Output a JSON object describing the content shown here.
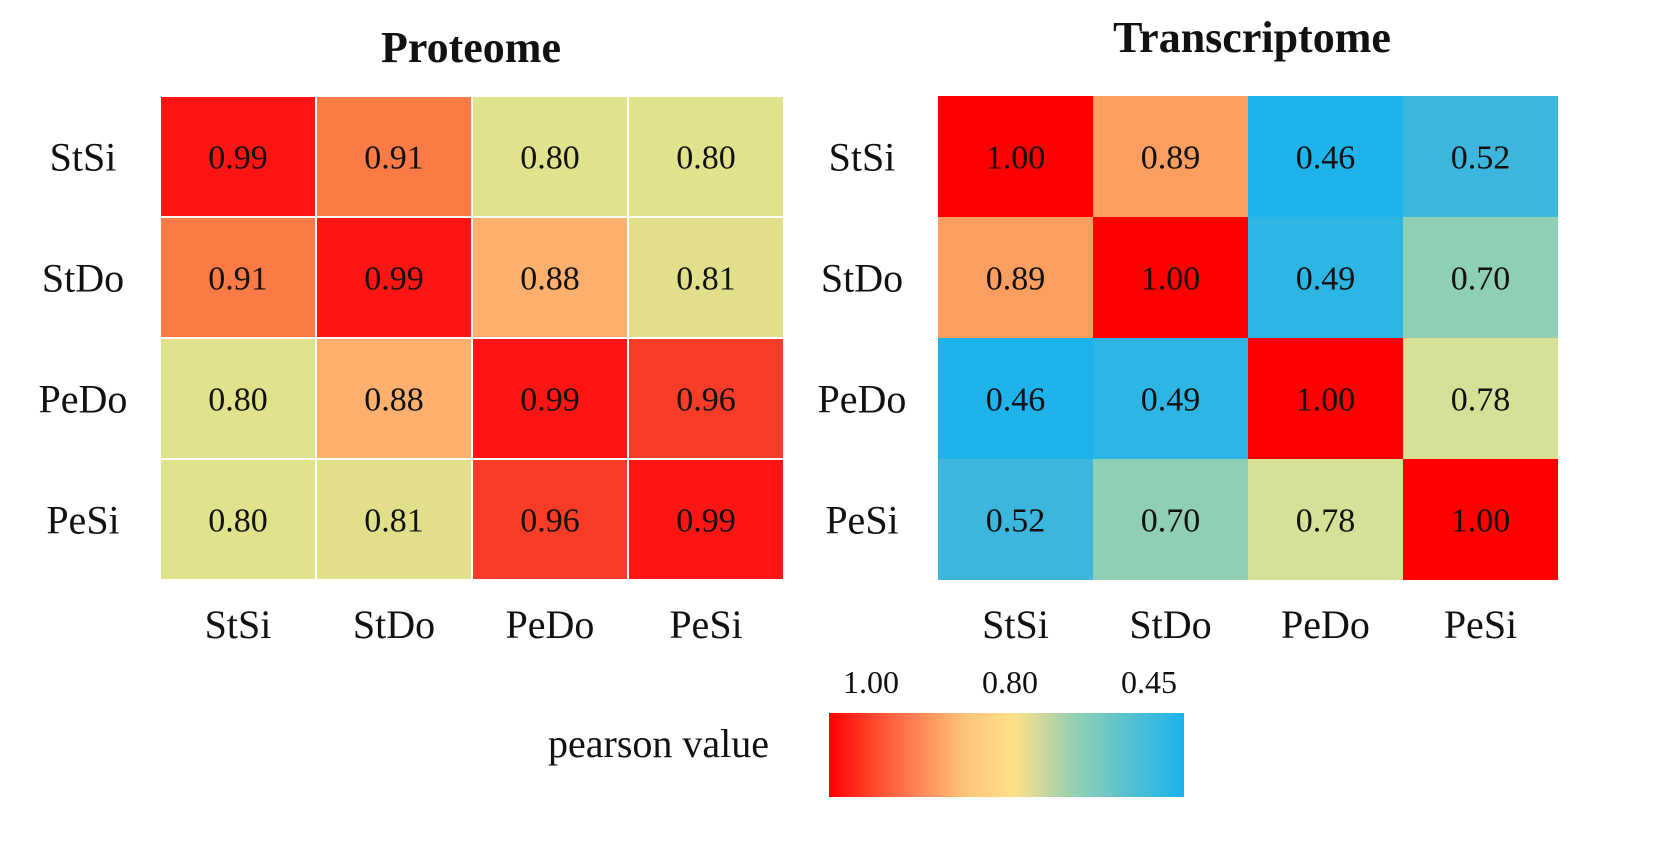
{
  "chart_data": [
    {
      "type": "heatmap",
      "title": "Proteome",
      "rows": [
        "StSi",
        "StDo",
        "PeDo",
        "PeSi"
      ],
      "cols": [
        "StSi",
        "StDo",
        "PeDo",
        "PeSi"
      ],
      "values": [
        [
          0.99,
          0.91,
          0.8,
          0.8
        ],
        [
          0.91,
          0.99,
          0.88,
          0.81
        ],
        [
          0.8,
          0.88,
          0.99,
          0.96
        ],
        [
          0.8,
          0.81,
          0.96,
          0.99
        ]
      ],
      "labels": [
        [
          "0.99",
          "0.91",
          "0.80",
          "0.80"
        ],
        [
          "0.91",
          "0.99",
          "0.88",
          "0.81"
        ],
        [
          "0.80",
          "0.88",
          "0.99",
          "0.96"
        ],
        [
          "0.80",
          "0.81",
          "0.96",
          "0.99"
        ]
      ]
    },
    {
      "type": "heatmap",
      "title": "Transcriptome",
      "rows": [
        "StSi",
        "StDo",
        "PeDo",
        "PeSi"
      ],
      "cols": [
        "StSi",
        "StDo",
        "PeDo",
        "PeSi"
      ],
      "values": [
        [
          1.0,
          0.89,
          0.46,
          0.52
        ],
        [
          0.89,
          1.0,
          0.49,
          0.7
        ],
        [
          0.46,
          0.49,
          1.0,
          0.78
        ],
        [
          0.52,
          0.7,
          0.78,
          1.0
        ]
      ],
      "labels": [
        [
          "1.00",
          "0.89",
          "0.46",
          "0.52"
        ],
        [
          "0.89",
          "1.00",
          "0.49",
          "0.70"
        ],
        [
          "0.46",
          "0.49",
          "1.00",
          "0.78"
        ],
        [
          "0.52",
          "0.70",
          "0.78",
          "1.00"
        ]
      ]
    }
  ],
  "legend": {
    "title": "pearson value",
    "ticks": [
      "1.00",
      "0.80",
      "0.45"
    ],
    "stops": [
      {
        "value": 1.0,
        "color": "#ff0000"
      },
      {
        "value": 0.8,
        "color": "#ffe08a"
      },
      {
        "value": 0.45,
        "color": "#1ab3ee"
      }
    ]
  }
}
